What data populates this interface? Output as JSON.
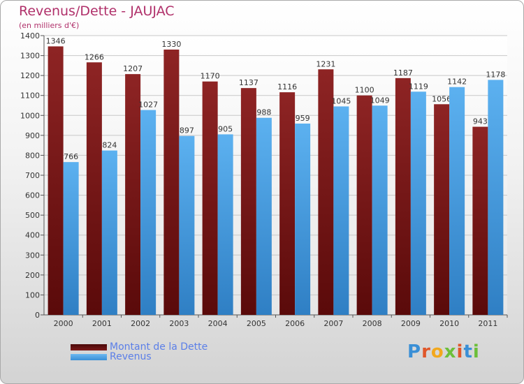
{
  "header": {
    "title": "Revenus/Dette - JAUJAC",
    "subtitle": "(en milliers d'€)"
  },
  "legend": {
    "debt_label": "Montant de la Dette",
    "revenue_label": "Revenus"
  },
  "logo": {
    "text": "Proxiti",
    "letters": [
      "P",
      "r",
      "o",
      "x",
      "i",
      "t",
      "i"
    ]
  },
  "colors": {
    "debt": "#7a1a1a",
    "revenue": "#4aa3e8",
    "title": "#b0306a",
    "legend_text": "#5b7fe8"
  },
  "chart_data": {
    "type": "bar",
    "title": "Revenus/Dette - JAUJAC",
    "ylabel": "(en milliers d'€)",
    "categories": [
      "2000",
      "2001",
      "2002",
      "2003",
      "2004",
      "2005",
      "2006",
      "2007",
      "2008",
      "2009",
      "2010",
      "2011"
    ],
    "series": [
      {
        "name": "Montant de la Dette",
        "values": [
          1346,
          1266,
          1207,
          1330,
          1170,
          1137,
          1116,
          1231,
          1100,
          1187,
          1056,
          943
        ]
      },
      {
        "name": "Revenus",
        "values": [
          766,
          824,
          1027,
          897,
          905,
          988,
          959,
          1045,
          1049,
          1119,
          1142,
          1178
        ]
      }
    ],
    "ylim": [
      0,
      1400
    ],
    "yticks": [
      0,
      100,
      200,
      300,
      400,
      500,
      600,
      700,
      800,
      900,
      1000,
      1100,
      1200,
      1300,
      1400
    ],
    "grid": true,
    "legend_position": "bottom-left"
  }
}
